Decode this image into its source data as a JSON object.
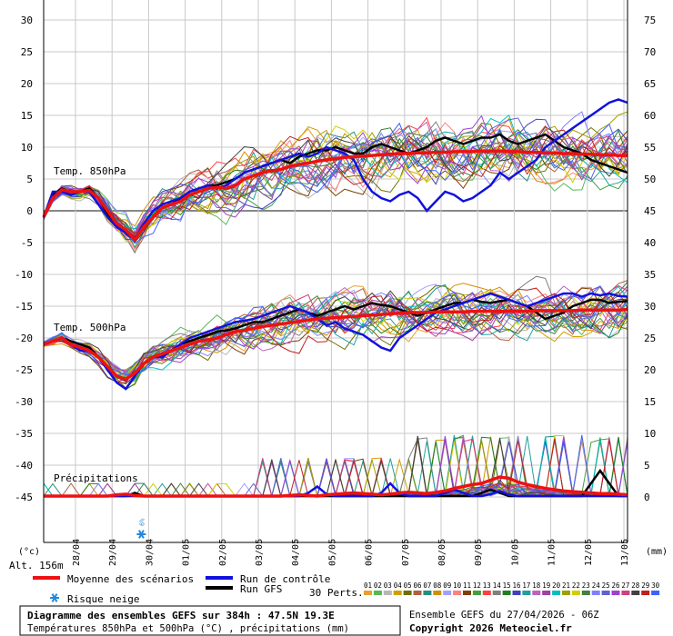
{
  "chart_data": {
    "type": "line",
    "left_axis_ticks": [
      30,
      25,
      20,
      15,
      10,
      5,
      0,
      -5,
      -10,
      -15,
      -20,
      -25,
      -30,
      -35,
      -40,
      -45
    ],
    "right_axis_ticks": [
      75,
      70,
      65,
      60,
      55,
      50,
      45,
      40,
      35,
      30,
      25,
      20,
      15,
      10,
      5,
      0
    ],
    "left_axis_unit": "(°c)",
    "right_axis_unit": "(mm)",
    "altitude_label": "Alt. 156m",
    "x_dates": [
      "28/04",
      "29/04",
      "30/04",
      "01/05",
      "02/05",
      "03/05",
      "04/05",
      "05/05",
      "06/05",
      "07/05",
      "08/05",
      "09/05",
      "10/05",
      "11/05",
      "12/05",
      "13/05"
    ],
    "x_step_hours": 6,
    "grid": true,
    "labels": {
      "t850": "Temp. 850hPa",
      "t500": "Temp. 500hPa",
      "precip": "Précipitations"
    },
    "snow_risk": {
      "day": "30/04",
      "text": "6%"
    },
    "series": [
      {
        "name": "Moyenne des scénarios",
        "color": "#ee1111",
        "t850": [
          -1,
          2,
          3.3,
          3,
          3,
          3.2,
          2,
          0,
          -2,
          -3,
          -4.5,
          -2.5,
          -1,
          0.5,
          1,
          1.5,
          2.5,
          3,
          3.5,
          3.7,
          3.5,
          4,
          5,
          5.5,
          6,
          6.3,
          6.5,
          7,
          7.3,
          7.5,
          7.8,
          8,
          8.2,
          8.4,
          8.5,
          8.6,
          8.7,
          8.8,
          8.9,
          9,
          9,
          9.1,
          9.1,
          9.2,
          9.2,
          9.3,
          9.3,
          9.3,
          9.4,
          9.4,
          9.4,
          9.3,
          9.3,
          9.2,
          9.2,
          9.1,
          9.1,
          9,
          9,
          8.9,
          8.9,
          8.8,
          8.8,
          8.7,
          8.7
        ],
        "t500": [
          -21,
          -20.5,
          -20,
          -21,
          -21.5,
          -22,
          -23,
          -24.5,
          -26,
          -26.5,
          -25.5,
          -24,
          -23,
          -22.5,
          -22,
          -21.5,
          -21,
          -20.5,
          -20.3,
          -20,
          -19.5,
          -19,
          -18.8,
          -18.5,
          -18.2,
          -18,
          -17.8,
          -17.6,
          -17.4,
          -17.2,
          -17,
          -16.9,
          -16.8,
          -16.7,
          -16.6,
          -16.5,
          -16.4,
          -16.3,
          -16.2,
          -16.1,
          -16,
          -16,
          -16,
          -15.9,
          -15.9,
          -15.9,
          -15.9,
          -15.8,
          -15.8,
          -15.8,
          -15.8,
          -15.8,
          -15.8,
          -15.8,
          -15.7,
          -15.7,
          -15.7,
          -15.7,
          -15.7,
          -15.6,
          -15.6,
          -15.6,
          -15.6,
          -15.6,
          -15.5
        ],
        "precip": [
          0,
          0,
          0,
          0,
          0,
          0,
          0,
          0,
          0.2,
          0.3,
          0.1,
          0,
          0,
          0,
          0,
          0,
          0,
          0,
          0,
          0,
          0,
          0,
          0,
          0,
          0,
          0,
          0,
          0.1,
          0.2,
          0.1,
          0,
          0.2,
          0.3,
          0.4,
          0.5,
          0.4,
          0.3,
          0.2,
          0.3,
          0.5,
          0.6,
          0.5,
          0.4,
          0.6,
          0.8,
          1.2,
          1.5,
          1.8,
          2,
          2.5,
          3,
          2.8,
          2.2,
          1.8,
          1.5,
          1.2,
          1,
          0.8,
          0.7,
          0.6,
          0.5,
          0.4,
          0.4,
          0.3,
          0.2
        ]
      },
      {
        "name": "Run de contrôle",
        "color": "#1111dd",
        "t850": [
          -1,
          3,
          3,
          2.5,
          3,
          3,
          1,
          -1,
          -2.5,
          -3.5,
          -4.5,
          -2,
          0,
          1,
          1.5,
          2,
          3,
          3.5,
          4,
          3.5,
          4,
          5,
          6,
          6.5,
          7,
          7.5,
          8,
          8.5,
          9,
          8.5,
          9,
          10,
          9.5,
          9,
          8,
          5,
          3,
          2,
          1.5,
          2.5,
          3,
          2,
          0,
          1.5,
          3,
          2.5,
          1.5,
          2,
          3,
          4,
          6,
          5,
          6,
          7,
          8,
          10,
          11,
          12,
          13,
          14,
          15,
          16,
          17,
          17.5,
          17
        ],
        "t500": [
          -21,
          -20.5,
          -20,
          -21,
          -22,
          -22,
          -23,
          -25,
          -27,
          -28,
          -26,
          -24,
          -23,
          -23,
          -22,
          -21,
          -20,
          -19.5,
          -19,
          -18.5,
          -18,
          -17.5,
          -17.3,
          -17,
          -16.5,
          -16,
          -15.5,
          -15,
          -15.5,
          -16,
          -17,
          -18,
          -17.5,
          -18.5,
          -19,
          -19.5,
          -20.5,
          -21.5,
          -22,
          -20,
          -19,
          -18,
          -17,
          -16,
          -15.5,
          -15,
          -14.5,
          -14,
          -13.5,
          -13,
          -13.5,
          -14,
          -14.5,
          -15,
          -14.5,
          -14,
          -13.5,
          -13,
          -13,
          -13.5,
          -13,
          -13.3,
          -13,
          -13.4,
          -13.5
        ],
        "precip": [
          0,
          0,
          0,
          0,
          0,
          0,
          0,
          0,
          0,
          0,
          0,
          0,
          0,
          0,
          0,
          0,
          0,
          0,
          0,
          0,
          0,
          0,
          0,
          0,
          0,
          0,
          0,
          0,
          0,
          0.5,
          1.5,
          0.3,
          0,
          0,
          0,
          0,
          0,
          0.5,
          2,
          0.5,
          0,
          0,
          0,
          0,
          0.5,
          1,
          0.5,
          0,
          0,
          0.3,
          0.8,
          0.2,
          0,
          0,
          0,
          0,
          0,
          0,
          0,
          0,
          0,
          0,
          0,
          0,
          0
        ]
      },
      {
        "name": "Run GFS",
        "color": "#000000",
        "t850": [
          -1,
          2.5,
          3.5,
          3,
          3,
          3.5,
          2,
          -0.5,
          -2,
          -3,
          -4.3,
          -2.5,
          -1,
          0.5,
          1,
          2,
          3,
          3.5,
          4,
          4,
          4.5,
          5,
          6,
          6.5,
          7,
          7.5,
          8,
          7.5,
          8.5,
          9,
          9.5,
          9.5,
          10,
          9.5,
          9,
          9,
          10,
          10.5,
          10,
          9.5,
          9,
          9.5,
          10,
          11,
          11.5,
          11,
          10.5,
          11,
          11.5,
          11.5,
          12,
          11,
          10.5,
          11,
          11.5,
          12,
          11,
          10,
          9.5,
          9,
          8,
          7.5,
          7,
          6.5,
          6
        ],
        "t500": [
          -21,
          -20.5,
          -20,
          -20.5,
          -21,
          -21.5,
          -23,
          -24.5,
          -26,
          -26.5,
          -25.5,
          -24,
          -23,
          -22.5,
          -22,
          -21,
          -20.5,
          -20,
          -19.5,
          -19,
          -18.8,
          -18.5,
          -18,
          -17.5,
          -17.5,
          -17,
          -16.5,
          -16,
          -15.5,
          -16,
          -16.5,
          -16,
          -15.5,
          -15,
          -15.5,
          -15,
          -14.5,
          -14.8,
          -15,
          -15.5,
          -16,
          -16.5,
          -16,
          -15.5,
          -15,
          -14.5,
          -14.5,
          -14,
          -14.3,
          -14.5,
          -14.2,
          -14,
          -14.5,
          -15,
          -16,
          -17,
          -16.5,
          -16,
          -15,
          -14.5,
          -14,
          -14,
          -14.5,
          -14.3,
          -14.2
        ],
        "precip": [
          0,
          0,
          0,
          0,
          0,
          0,
          0,
          0,
          0,
          0,
          0.5,
          0,
          0,
          0,
          0,
          0,
          0,
          0,
          0,
          0,
          0,
          0,
          0,
          0,
          0,
          0,
          0,
          0,
          0,
          0,
          0,
          0,
          0,
          0,
          0,
          0,
          0,
          0,
          0,
          0,
          0,
          0,
          0,
          0,
          0,
          0,
          0,
          0,
          0.5,
          1,
          0.5,
          0,
          0,
          0,
          0,
          0,
          0,
          0,
          0,
          0,
          2,
          4,
          2,
          0,
          0
        ]
      }
    ],
    "perturbation_count": 30
  },
  "legend": {
    "mean_label": "Moyenne des scénarios",
    "control_label": "Run de contrôle",
    "gfs_label": "Run GFS",
    "perts_label": "30 Perts.",
    "snow_label": "Risque neige",
    "pert_numbers": [
      "01",
      "02",
      "03",
      "04",
      "05",
      "06",
      "07",
      "08",
      "09",
      "10",
      "11",
      "12",
      "13",
      "14",
      "15",
      "16",
      "17",
      "18",
      "19",
      "20",
      "21",
      "22",
      "23",
      "24",
      "25",
      "26",
      "27",
      "28",
      "29",
      "30"
    ],
    "pert_colors": [
      "#e8a030",
      "#58b858",
      "#b8b8b8",
      "#d0a000",
      "#707000",
      "#b06040",
      "#209080",
      "#d09000",
      "#a0a0ff",
      "#ff8080",
      "#804000",
      "#40a040",
      "#ff4040",
      "#808080",
      "#208020",
      "#4040c0",
      "#20a0a0",
      "#c060c0",
      "#a040a0",
      "#00c0c0",
      "#a0a000",
      "#d0d000",
      "#408040",
      "#8080ff",
      "#6060d0",
      "#a040d0",
      "#d04080",
      "#404040",
      "#c02020",
      "#4060ff"
    ]
  },
  "footer": {
    "title": "Diagramme des ensembles GEFS sur 384h : 47.5N 19.3E",
    "subtitle": "Températures 850hPa et 500hPa (°C) , précipitations (mm)",
    "run_info": "Ensemble GEFS du 27/04/2026 - 06Z",
    "copyright": "Copyright 2026 Meteociel.fr"
  }
}
